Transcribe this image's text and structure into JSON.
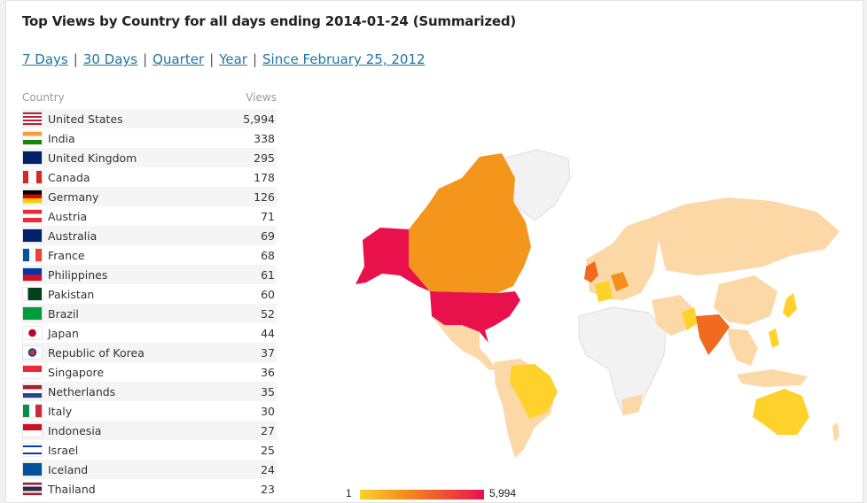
{
  "header": {
    "title": "Top Views by Country for all days ending 2014-01-24 (Summarized)"
  },
  "periods": [
    {
      "label": "7 Days"
    },
    {
      "label": "30 Days"
    },
    {
      "label": "Quarter"
    },
    {
      "label": "Year"
    },
    {
      "label": "Since February 25, 2012"
    }
  ],
  "table": {
    "col_country": "Country",
    "col_views": "Views",
    "rows": [
      {
        "country": "United States",
        "views": "5,994",
        "flag": "us"
      },
      {
        "country": "India",
        "views": "338",
        "flag": "in"
      },
      {
        "country": "United Kingdom",
        "views": "295",
        "flag": "gb"
      },
      {
        "country": "Canada",
        "views": "178",
        "flag": "ca"
      },
      {
        "country": "Germany",
        "views": "126",
        "flag": "de"
      },
      {
        "country": "Austria",
        "views": "71",
        "flag": "at"
      },
      {
        "country": "Australia",
        "views": "69",
        "flag": "au"
      },
      {
        "country": "France",
        "views": "68",
        "flag": "fr"
      },
      {
        "country": "Philippines",
        "views": "61",
        "flag": "ph"
      },
      {
        "country": "Pakistan",
        "views": "60",
        "flag": "pk"
      },
      {
        "country": "Brazil",
        "views": "52",
        "flag": "br"
      },
      {
        "country": "Japan",
        "views": "44",
        "flag": "jp"
      },
      {
        "country": "Republic of Korea",
        "views": "37",
        "flag": "kr"
      },
      {
        "country": "Singapore",
        "views": "36",
        "flag": "sg"
      },
      {
        "country": "Netherlands",
        "views": "35",
        "flag": "nl"
      },
      {
        "country": "Italy",
        "views": "30",
        "flag": "it"
      },
      {
        "country": "Indonesia",
        "views": "27",
        "flag": "id"
      },
      {
        "country": "Israel",
        "views": "25",
        "flag": "il"
      },
      {
        "country": "Iceland",
        "views": "24",
        "flag": "is"
      },
      {
        "country": "Thailand",
        "views": "23",
        "flag": "th"
      }
    ]
  },
  "map": {
    "legend_min": "1",
    "legend_max": "5,994",
    "colors": {
      "low": "#ffd12b",
      "mid": "#f58f1c",
      "high": "#e8114c",
      "minimal": "#fbd8a6",
      "none": "#f2f2f2"
    }
  }
}
